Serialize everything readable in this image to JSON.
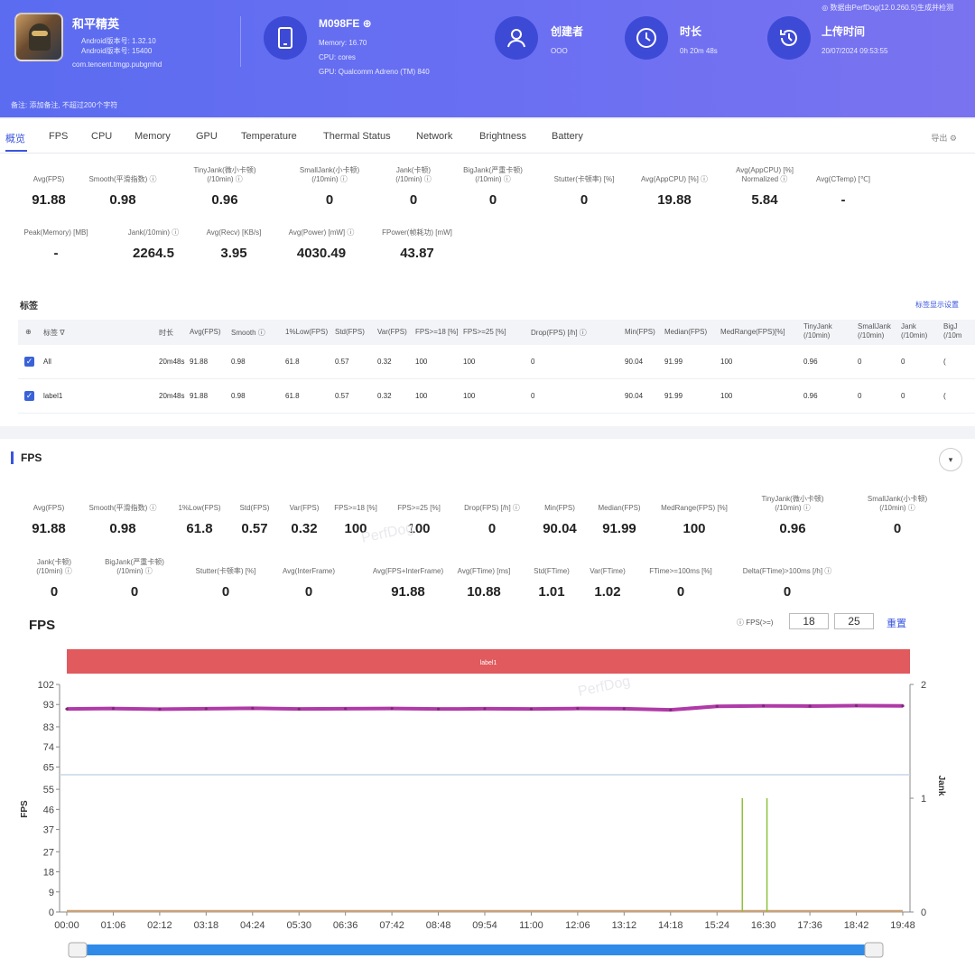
{
  "header": {
    "note": "◎ 数据由PerfDog(12.0.260.5)生成并检测",
    "app_name": "和平精英",
    "app_sub1": "Android版本号: 1.32.10",
    "app_sub2": "Android版本号: 15400",
    "app_package": "com.tencent.tmgp.pubgmhd",
    "device_name": "M098FE ⊕",
    "device_memory": "Memory: 16.70",
    "device_cpu": "CPU: cores",
    "device_gpu": "GPU: Qualcomm Adreno (TM) 840",
    "creator_title": "创建者",
    "creator_value": "OOO",
    "duration_title": "时长",
    "duration_value": "0h 20m 48s",
    "upload_title": "上传时间",
    "upload_value": "20/07/2024 09:53:55",
    "remark": "备注:  添加备注,   不超过200个字符"
  },
  "tabs": [
    "概览",
    "FPS",
    "CPU",
    "Memory",
    "GPU",
    "Temperature",
    "Thermal Status",
    "Network",
    "Brightness",
    "Battery"
  ],
  "tab_tools": "导出  ⚙",
  "overview_metrics_row1": [
    {
      "label": "Avg(FPS)",
      "value": "91.88"
    },
    {
      "label": "Smooth(平滑指数) ⓘ",
      "value": "0.98"
    },
    {
      "label": "TinyJank(微小卡顿)\n(/10min) ⓘ",
      "value": "0.96"
    },
    {
      "label": "SmallJank(小卡顿)\n(/10min) ⓘ",
      "value": "0"
    },
    {
      "label": "Jank(卡顿)\n(/10min) ⓘ",
      "value": "0"
    },
    {
      "label": "BigJank(严重卡顿)\n(/10min) ⓘ",
      "value": "0"
    },
    {
      "label": "Stutter(卡顿率) [%]",
      "value": "0"
    },
    {
      "label": "Avg(AppCPU) [%] ⓘ",
      "value": "19.88"
    },
    {
      "label": "Avg(AppCPU) [%]\nNormalized ⓘ",
      "value": "5.84"
    },
    {
      "label": "Avg(CTemp) [℃]",
      "value": "-"
    }
  ],
  "overview_metrics_row2": [
    {
      "label": "Peak(Memory) [MB]",
      "value": "-"
    },
    {
      "label": "Jank(/10min) ⓘ",
      "value": "2264.5"
    },
    {
      "label": "Avg(Recv) [KB/s]",
      "value": "3.95"
    },
    {
      "label": "Avg(Power) [mW] ⓘ",
      "value": "4030.49"
    },
    {
      "label": "FPower(帧耗功) [mW]",
      "value": "43.87"
    }
  ],
  "labels_section": {
    "title": "标签",
    "link": "标签显示设置",
    "columns": [
      "⊕",
      "标签 ∇",
      "时长",
      "Avg(FPS)",
      "Smooth ⓘ",
      "1%Low(FPS)",
      "Std(FPS)",
      "Var(FPS)",
      "FPS>=18 [%]",
      "FPS>=25 [%]",
      "Drop(FPS) [/h] ⓘ",
      "Min(FPS)",
      "Median(FPS)",
      "MedRange(FPS)[%]",
      "TinyJank\n(/10min)",
      "SmallJank\n(/10min)",
      "Jank\n(/10min)",
      "BigJ\n(/10m"
    ],
    "rows": [
      [
        "All",
        "20m48s",
        "91.88",
        "0.98",
        "61.8",
        "0.57",
        "0.32",
        "100",
        "100",
        "0",
        "90.04",
        "91.99",
        "100",
        "0.96",
        "0",
        "0",
        "("
      ],
      [
        "label1",
        "20m48s",
        "91.88",
        "0.98",
        "61.8",
        "0.57",
        "0.32",
        "100",
        "100",
        "0",
        "90.04",
        "91.99",
        "100",
        "0.96",
        "0",
        "0",
        "("
      ]
    ]
  },
  "fps_section": {
    "title": "FPS",
    "collapse": "▾",
    "metrics_row1": [
      {
        "label": "Avg(FPS)",
        "value": "91.88"
      },
      {
        "label": "Smooth(平滑指数) ⓘ",
        "value": "0.98"
      },
      {
        "label": "1%Low(FPS)",
        "value": "61.8"
      },
      {
        "label": "Std(FPS)",
        "value": "0.57"
      },
      {
        "label": "Var(FPS)",
        "value": "0.32"
      },
      {
        "label": "FPS>=18 [%]",
        "value": "100"
      },
      {
        "label": "FPS>=25 [%]",
        "value": "100"
      },
      {
        "label": "Drop(FPS) [/h] ⓘ",
        "value": "0"
      },
      {
        "label": "Min(FPS)",
        "value": "90.04"
      },
      {
        "label": "Median(FPS)",
        "value": "91.99"
      },
      {
        "label": "MedRange(FPS) [%]",
        "value": "100"
      },
      {
        "label": "TinyJank(微小卡顿)\n(/10min) ⓘ",
        "value": "0.96"
      },
      {
        "label": "SmallJank(小卡顿)\n(/10min) ⓘ",
        "value": "0"
      }
    ],
    "metrics_row2": [
      {
        "label": "Jank(卡顿)\n(/10min) ⓘ",
        "value": "0"
      },
      {
        "label": "BigJank(严重卡顿)\n(/10min) ⓘ",
        "value": "0"
      },
      {
        "label": "Stutter(卡顿率) [%]",
        "value": "0"
      },
      {
        "label": "Avg(InterFrame)",
        "value": "0"
      },
      {
        "label": "Avg(FPS+InterFrame)",
        "value": "91.88"
      },
      {
        "label": "Avg(FTime) [ms]",
        "value": "10.88"
      },
      {
        "label": "Std(FTime)",
        "value": "1.01"
      },
      {
        "label": "Var(FTime)",
        "value": "1.02"
      },
      {
        "label": "FTime>=100ms [%]",
        "value": "0"
      },
      {
        "label": "Delta(FTime)>100ms [/h] ⓘ",
        "value": "0"
      }
    ],
    "chart_title": "FPS",
    "threshold_label": "ⓘ FPS(>=)",
    "threshold1": "18",
    "threshold2": "25",
    "reset": "重置"
  },
  "watermark": "PerfDog",
  "colors": {
    "header": "#5b6cf0",
    "accent": "#3a55e0",
    "label_bar": "#e05a5e",
    "fps_line": "#b03aa8",
    "jank_line": "#8fbf3a",
    "jank_base": "#c9a27a"
  },
  "chart_data": {
    "type": "line",
    "label_bar": "label1",
    "ylabel": "FPS",
    "ylabel_right": "Jank",
    "yticks": [
      "102",
      "93",
      "83",
      "74",
      "65",
      "55",
      "46",
      "37",
      "27",
      "18",
      "9",
      "0"
    ],
    "yticks_right": [
      "2",
      "1",
      "0"
    ],
    "ylim": [
      0,
      102
    ],
    "ylim_right": [
      0,
      2
    ],
    "x": [
      "00:00",
      "01:06",
      "02:12",
      "03:18",
      "04:24",
      "05:30",
      "06:36",
      "07:42",
      "08:48",
      "09:54",
      "11:00",
      "12:06",
      "13:12",
      "14:18",
      "15:24",
      "16:30",
      "17:36",
      "18:42",
      "19:48"
    ],
    "series": [
      {
        "name": "FPS",
        "values": [
          91.0,
          91.2,
          90.9,
          91.1,
          91.3,
          91.0,
          91.1,
          91.2,
          91.0,
          91.1,
          91.0,
          91.2,
          91.1,
          90.6,
          92.2,
          92.4,
          92.3,
          92.5,
          92.4
        ]
      },
      {
        "name": "Jank",
        "values": [
          0,
          0,
          0,
          0,
          0,
          0,
          0,
          0,
          0,
          0,
          0,
          0,
          0,
          0,
          0,
          0,
          0,
          0,
          0
        ],
        "spikes_at": [
          "16:00",
          "16:35"
        ],
        "spike_value": 1
      }
    ]
  }
}
